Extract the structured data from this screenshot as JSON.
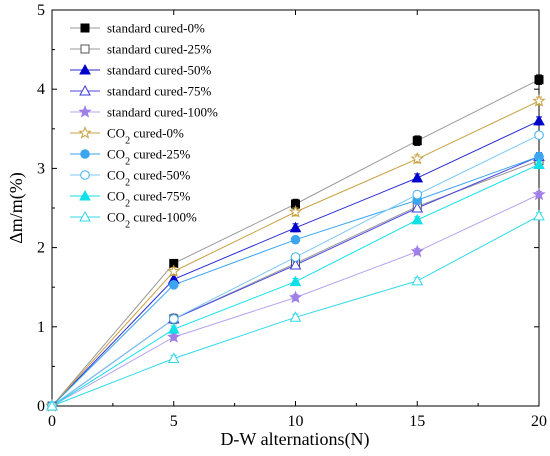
{
  "chart_data": {
    "type": "line",
    "xlabel": "D-W alternations(N)",
    "ylabel": "Δm/m(%)",
    "xlim": [
      0,
      20
    ],
    "ylim": [
      0,
      5
    ],
    "xticks": [
      0,
      5,
      10,
      15,
      20
    ],
    "yticks": [
      0,
      1,
      2,
      3,
      4,
      5
    ],
    "grid": false,
    "legend_position": "top-left",
    "x": [
      0,
      5,
      10,
      15,
      20
    ],
    "series": [
      {
        "name": "standard cured-0%",
        "sub": "",
        "tail": "",
        "marker": "square",
        "filled": true,
        "color": "#000000",
        "line_color": "#9a9a9a",
        "values": [
          0,
          1.8,
          2.55,
          3.35,
          4.12
        ],
        "err": [
          0,
          0.05,
          0.06,
          0.06,
          0.06
        ]
      },
      {
        "name": "standard cured-25%",
        "sub": "",
        "tail": "",
        "marker": "square",
        "filled": false,
        "color": "#555555",
        "line_color": "#9a9a9a",
        "values": [
          0,
          1.1,
          1.8,
          2.52,
          3.1
        ],
        "err": [
          0,
          0.06,
          0.05,
          0.05,
          0.05
        ]
      },
      {
        "name": "standard cured-50%",
        "sub": "",
        "tail": "",
        "marker": "triangle",
        "filled": true,
        "color": "#0000cc",
        "line_color": "#2a2ad6",
        "values": [
          0,
          1.6,
          2.25,
          2.88,
          3.6
        ],
        "err": [
          0,
          0.05,
          0.05,
          0.05,
          0.05
        ]
      },
      {
        "name": "standard cured-75%",
        "sub": "",
        "tail": "",
        "marker": "triangle",
        "filled": false,
        "color": "#3b3bd8",
        "line_color": "#4a4ae0",
        "values": [
          0,
          1.1,
          1.78,
          2.5,
          3.15
        ],
        "err": [
          0,
          0.05,
          0.04,
          0.05,
          0.05
        ]
      },
      {
        "name": "standard cured-100%",
        "sub": "",
        "tail": "",
        "marker": "star",
        "filled": true,
        "color": "#9f7fe8",
        "line_color": "#b9a3ee",
        "values": [
          0,
          0.87,
          1.37,
          1.95,
          2.67
        ],
        "err": [
          0,
          0.04,
          0.04,
          0.04,
          0.04
        ]
      },
      {
        "name": "CO2 cured-0%",
        "sub": "2",
        "tail": " cured-0%",
        "marker": "star",
        "filled": false,
        "color": "#c8a040",
        "line_color": "#c8a040",
        "values": [
          0,
          1.7,
          2.45,
          3.12,
          3.85
        ],
        "err": [
          0,
          0.05,
          0.05,
          0.05,
          0.05
        ]
      },
      {
        "name": "CO2 cured-25%",
        "sub": "2",
        "tail": " cured-25%",
        "marker": "circle",
        "filled": true,
        "color": "#3ba5f0",
        "line_color": "#3ba5f0",
        "values": [
          0,
          1.53,
          2.1,
          2.6,
          3.15
        ],
        "err": [
          0,
          0.04,
          0.04,
          0.04,
          0.04
        ]
      },
      {
        "name": "CO2 cured-50%",
        "sub": "2",
        "tail": " cured-50%",
        "marker": "circle",
        "filled": false,
        "color": "#3fb2f2",
        "line_color": "#7dc9f5",
        "values": [
          0,
          1.1,
          1.88,
          2.67,
          3.42
        ],
        "err": [
          0,
          0.04,
          0.04,
          0.04,
          0.04
        ]
      },
      {
        "name": "CO2 cured-75%",
        "sub": "2",
        "tail": " cured-75%",
        "marker": "triangle",
        "filled": true,
        "color": "#10e0e8",
        "line_color": "#10e0e8",
        "values": [
          0,
          0.97,
          1.57,
          2.35,
          3.05
        ],
        "err": [
          0,
          0.04,
          0.04,
          0.04,
          0.04
        ]
      },
      {
        "name": "CO2 cured-100%",
        "sub": "2",
        "tail": " cured-100%",
        "marker": "triangle",
        "filled": false,
        "color": "#30d8e8",
        "line_color": "#30d8e8",
        "values": [
          0,
          0.6,
          1.12,
          1.58,
          2.4
        ],
        "err": [
          0,
          0.04,
          0.04,
          0.04,
          0.04
        ]
      }
    ]
  }
}
